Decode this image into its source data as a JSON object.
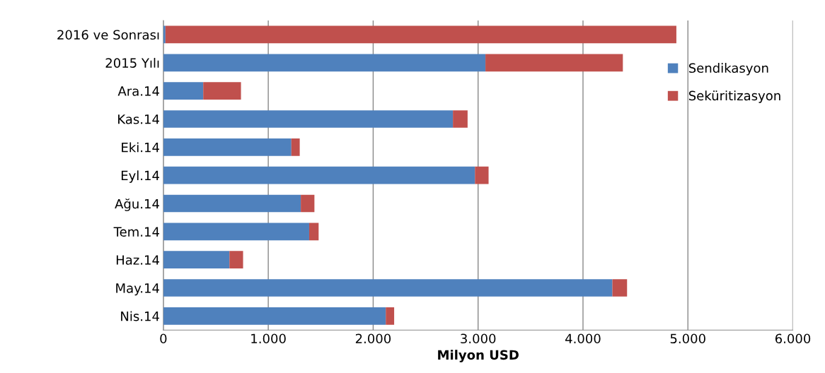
{
  "chart_data": {
    "type": "bar",
    "orientation": "horizontal",
    "stacked": true,
    "xlabel": "Milyon USD",
    "categories": [
      "2016 ve Sonrası",
      "2015 Yılı",
      "Ara.14",
      "Kas.14",
      "Eki.14",
      "Eyl.14",
      "Ağu.14",
      "Tem.14",
      "Haz.14",
      "May.14",
      "Nis.14"
    ],
    "series": [
      {
        "name": "Sendikasyon",
        "color": "#4f81bd",
        "values": [
          20,
          3070,
          380,
          2760,
          1220,
          2970,
          1310,
          1390,
          630,
          4280,
          2120
        ]
      },
      {
        "name": "Seküritizasyon",
        "color": "#c0504d",
        "values": [
          4870,
          1310,
          360,
          140,
          80,
          130,
          130,
          90,
          130,
          140,
          80
        ]
      }
    ],
    "xlim": [
      0,
      6000
    ],
    "xticks": [
      {
        "value": 0,
        "label": "0"
      },
      {
        "value": 1000,
        "label": "1.000"
      },
      {
        "value": 2000,
        "label": "2.000"
      },
      {
        "value": 3000,
        "label": "3.000"
      },
      {
        "value": 4000,
        "label": "4.000"
      },
      {
        "value": 5000,
        "label": "5.000"
      },
      {
        "value": 6000,
        "label": "6.000"
      }
    ],
    "grid": "x",
    "legend": "top right"
  }
}
